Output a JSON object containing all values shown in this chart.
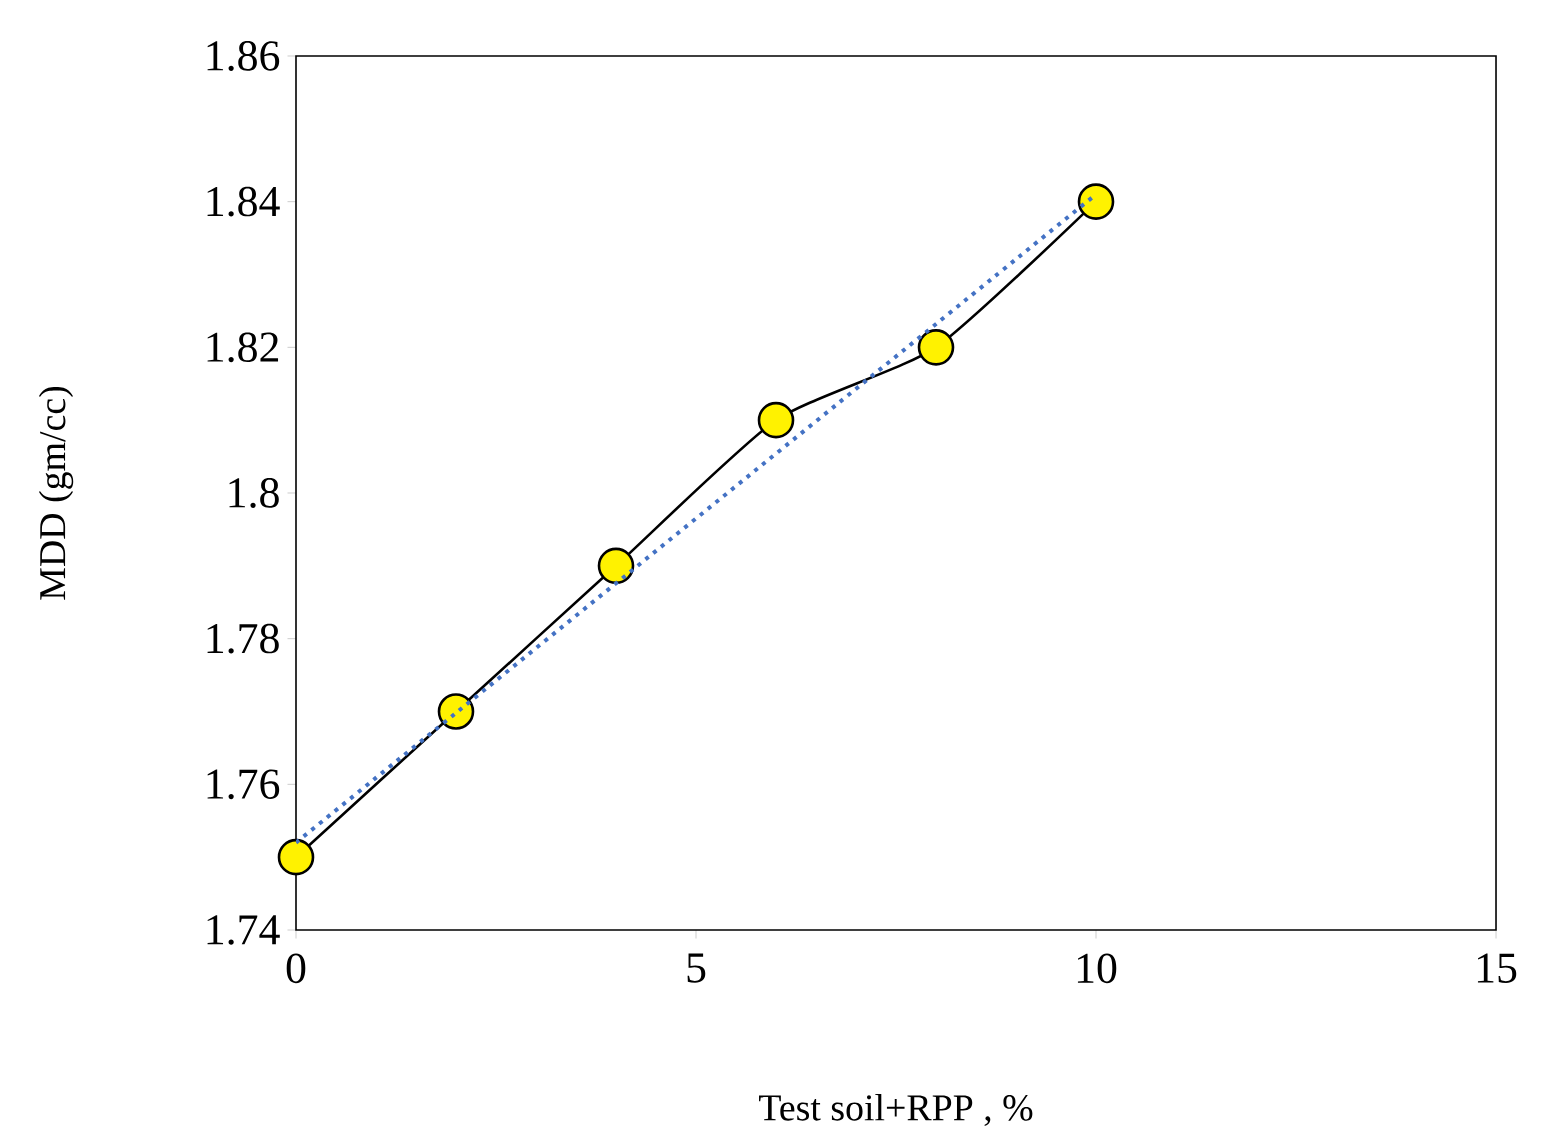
{
  "chart_data": {
    "type": "line",
    "xlabel": "Test soil+RPP , %",
    "ylabel": "MDD (gm/cc)",
    "xlim": [
      0,
      15
    ],
    "xticks": [
      0,
      5,
      10,
      15
    ],
    "ylim": [
      1.74,
      1.86
    ],
    "yticks": [
      1.74,
      1.76,
      1.78,
      1.8,
      1.82,
      1.84,
      1.86
    ],
    "series": [
      {
        "x": [
          0,
          2,
          4,
          6,
          8,
          10
        ],
        "values": [
          1.75,
          1.77,
          1.79,
          1.81,
          1.82,
          1.84
        ],
        "color": "#000000",
        "marker": "circle",
        "line_style": "solid"
      },
      {
        "x": [
          0,
          10
        ],
        "values": [
          1.752,
          1.841
        ],
        "color": "#4472c4",
        "line_style": "dotted"
      }
    ]
  }
}
